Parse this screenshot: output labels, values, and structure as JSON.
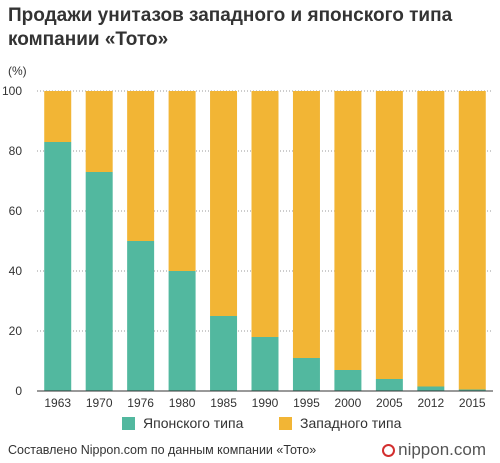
{
  "chart_data": {
    "type": "bar",
    "stacked": true,
    "title": "Продажи унитазов западного и японского типа компании «Тото»",
    "ylabel": "(%)",
    "ylim": [
      0,
      100
    ],
    "yticks": [
      "0",
      "20",
      "40",
      "60",
      "80",
      "100"
    ],
    "categories": [
      "1963",
      "1970",
      "1976",
      "1980",
      "1985",
      "1990",
      "1995",
      "2000",
      "2005",
      "2012",
      "2015"
    ],
    "series": [
      {
        "name": "Японского типа",
        "color": "#52b89f",
        "values": [
          83,
          73,
          50,
          40,
          25,
          18,
          11,
          7,
          4,
          1.5,
          0.5
        ]
      },
      {
        "name": "Западного типа",
        "color": "#f2b535",
        "values": [
          17,
          27,
          50,
          60,
          75,
          82,
          89,
          93,
          96,
          98.5,
          99.5
        ]
      }
    ],
    "legend_position": "bottom",
    "grid": "horizontal dotted"
  },
  "footer": {
    "source": "Составлено Nippon.com по данным компании «Тото»"
  },
  "logo": {
    "text": "nippon.com"
  }
}
